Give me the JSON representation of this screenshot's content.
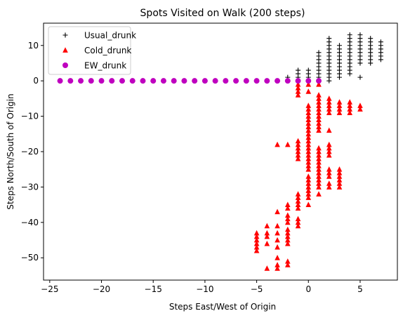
{
  "chart_data": {
    "type": "scatter",
    "title": "Spots Visited on Walk (200 steps)",
    "xlabel": "Steps East/West of Origin",
    "ylabel": "Steps North/South of Origin",
    "xlim": [
      -25.6,
      8.6
    ],
    "ylim": [
      -56.3,
      16.3
    ],
    "xticks": [
      -25,
      -20,
      -15,
      -10,
      -5,
      0,
      5
    ],
    "yticks": [
      10,
      0,
      -10,
      -20,
      -30,
      -40,
      -50
    ],
    "grid": false,
    "legend": "top-left",
    "series": [
      {
        "name": "Usual_drunk",
        "marker": "plus",
        "color": "#000000",
        "points": [
          [
            -2,
            1
          ],
          [
            -1,
            0
          ],
          [
            -1,
            1
          ],
          [
            -1,
            2
          ],
          [
            -1,
            3
          ],
          [
            0,
            0
          ],
          [
            0,
            1
          ],
          [
            0,
            2
          ],
          [
            0,
            3
          ],
          [
            1,
            0
          ],
          [
            1,
            1
          ],
          [
            1,
            2
          ],
          [
            1,
            3
          ],
          [
            1,
            4
          ],
          [
            1,
            5
          ],
          [
            1,
            6
          ],
          [
            1,
            7
          ],
          [
            1,
            8
          ],
          [
            2,
            0
          ],
          [
            2,
            1
          ],
          [
            2,
            2
          ],
          [
            2,
            3
          ],
          [
            2,
            4
          ],
          [
            2,
            5
          ],
          [
            2,
            6
          ],
          [
            2,
            7
          ],
          [
            2,
            8
          ],
          [
            2,
            9
          ],
          [
            2,
            10
          ],
          [
            2,
            11
          ],
          [
            2,
            12
          ],
          [
            3,
            1
          ],
          [
            3,
            2
          ],
          [
            3,
            3
          ],
          [
            3,
            4
          ],
          [
            3,
            5
          ],
          [
            3,
            6
          ],
          [
            3,
            7
          ],
          [
            3,
            8
          ],
          [
            3,
            9
          ],
          [
            3,
            10
          ],
          [
            4,
            2
          ],
          [
            4,
            3
          ],
          [
            4,
            4
          ],
          [
            4,
            5
          ],
          [
            4,
            6
          ],
          [
            4,
            7
          ],
          [
            4,
            8
          ],
          [
            4,
            9
          ],
          [
            4,
            10
          ],
          [
            4,
            11
          ],
          [
            4,
            12
          ],
          [
            4,
            13
          ],
          [
            5,
            1
          ],
          [
            5,
            5
          ],
          [
            5,
            6
          ],
          [
            5,
            7
          ],
          [
            5,
            8
          ],
          [
            5,
            9
          ],
          [
            5,
            10
          ],
          [
            5,
            11
          ],
          [
            5,
            12
          ],
          [
            5,
            13
          ],
          [
            6,
            5
          ],
          [
            6,
            6
          ],
          [
            6,
            7
          ],
          [
            6,
            8
          ],
          [
            6,
            9
          ],
          [
            6,
            10
          ],
          [
            6,
            11
          ],
          [
            6,
            12
          ],
          [
            7,
            6
          ],
          [
            7,
            7
          ],
          [
            7,
            8
          ],
          [
            7,
            9
          ],
          [
            7,
            10
          ],
          [
            7,
            11
          ]
        ]
      },
      {
        "name": "Cold_drunk",
        "marker": "triangle",
        "color": "#ff0000",
        "points": [
          [
            -5,
            -43
          ],
          [
            -5,
            -44
          ],
          [
            -5,
            -45
          ],
          [
            -5,
            -46
          ],
          [
            -5,
            -47
          ],
          [
            -5,
            -48
          ],
          [
            -4,
            -41
          ],
          [
            -4,
            -43
          ],
          [
            -4,
            -44
          ],
          [
            -4,
            -46
          ],
          [
            -4,
            -53
          ],
          [
            -3,
            -18
          ],
          [
            -3,
            -37
          ],
          [
            -3,
            -41
          ],
          [
            -3,
            -43
          ],
          [
            -3,
            -45
          ],
          [
            -3,
            -47
          ],
          [
            -3,
            -50
          ],
          [
            -3,
            -52
          ],
          [
            -3,
            -53
          ],
          [
            -2,
            -18
          ],
          [
            -2,
            -35
          ],
          [
            -2,
            -36
          ],
          [
            -2,
            -38
          ],
          [
            -2,
            -39
          ],
          [
            -2,
            -40
          ],
          [
            -2,
            -42
          ],
          [
            -2,
            -43
          ],
          [
            -2,
            -44
          ],
          [
            -2,
            -45
          ],
          [
            -2,
            -46
          ],
          [
            -2,
            -51
          ],
          [
            -2,
            -52
          ],
          [
            -1,
            -17
          ],
          [
            -1,
            -18
          ],
          [
            -1,
            -19
          ],
          [
            -1,
            -20
          ],
          [
            -1,
            -21
          ],
          [
            -1,
            -22
          ],
          [
            -1,
            -32
          ],
          [
            -1,
            -33
          ],
          [
            -1,
            -34
          ],
          [
            -1,
            -35
          ],
          [
            -1,
            -36
          ],
          [
            -1,
            -39
          ],
          [
            -1,
            -40
          ],
          [
            -1,
            -41
          ],
          [
            -1,
            -1
          ],
          [
            -1,
            -2
          ],
          [
            -1,
            -3
          ],
          [
            -1,
            -4
          ],
          [
            0,
            -1
          ],
          [
            0,
            -3
          ],
          [
            0,
            -7
          ],
          [
            0,
            -8
          ],
          [
            0,
            -9
          ],
          [
            0,
            -10
          ],
          [
            0,
            -11
          ],
          [
            0,
            -12
          ],
          [
            0,
            -13
          ],
          [
            0,
            -14
          ],
          [
            0,
            -15
          ],
          [
            0,
            -16
          ],
          [
            0,
            -17
          ],
          [
            0,
            -18
          ],
          [
            0,
            -19
          ],
          [
            0,
            -20
          ],
          [
            0,
            -21
          ],
          [
            0,
            -22
          ],
          [
            0,
            -23
          ],
          [
            0,
            -24
          ],
          [
            0,
            -25
          ],
          [
            0,
            -27
          ],
          [
            0,
            -28
          ],
          [
            0,
            -29
          ],
          [
            0,
            -30
          ],
          [
            0,
            -31
          ],
          [
            0,
            -32
          ],
          [
            0,
            -33
          ],
          [
            0,
            -35
          ],
          [
            1,
            -1
          ],
          [
            1,
            -4
          ],
          [
            1,
            -5
          ],
          [
            1,
            -6
          ],
          [
            1,
            -7
          ],
          [
            1,
            -8
          ],
          [
            1,
            -9
          ],
          [
            1,
            -10
          ],
          [
            1,
            -11
          ],
          [
            1,
            -12
          ],
          [
            1,
            -13
          ],
          [
            1,
            -14
          ],
          [
            1,
            -19
          ],
          [
            1,
            -20
          ],
          [
            1,
            -21
          ],
          [
            1,
            -22
          ],
          [
            1,
            -23
          ],
          [
            1,
            -24
          ],
          [
            1,
            -25
          ],
          [
            1,
            -26
          ],
          [
            1,
            -27
          ],
          [
            1,
            -28
          ],
          [
            1,
            -29
          ],
          [
            1,
            -30
          ],
          [
            1,
            -32
          ],
          [
            2,
            -5
          ],
          [
            2,
            -6
          ],
          [
            2,
            -7
          ],
          [
            2,
            -8
          ],
          [
            2,
            -9
          ],
          [
            2,
            -14
          ],
          [
            2,
            -18
          ],
          [
            2,
            -19
          ],
          [
            2,
            -20
          ],
          [
            2,
            -21
          ],
          [
            2,
            -25
          ],
          [
            2,
            -26
          ],
          [
            2,
            -27
          ],
          [
            2,
            -29
          ],
          [
            2,
            -30
          ],
          [
            3,
            -6
          ],
          [
            3,
            -7
          ],
          [
            3,
            -8
          ],
          [
            3,
            -9
          ],
          [
            3,
            -25
          ],
          [
            3,
            -26
          ],
          [
            3,
            -27
          ],
          [
            3,
            -28
          ],
          [
            3,
            -29
          ],
          [
            3,
            -30
          ],
          [
            4,
            -6
          ],
          [
            4,
            -7
          ],
          [
            4,
            -8
          ],
          [
            4,
            -9
          ],
          [
            5,
            -7
          ],
          [
            5,
            -8
          ]
        ]
      },
      {
        "name": "EW_drunk",
        "marker": "circle",
        "color": "#bf00bf",
        "points": [
          [
            -24,
            0
          ],
          [
            -23,
            0
          ],
          [
            -22,
            0
          ],
          [
            -21,
            0
          ],
          [
            -20,
            0
          ],
          [
            -19,
            0
          ],
          [
            -18,
            0
          ],
          [
            -17,
            0
          ],
          [
            -16,
            0
          ],
          [
            -15,
            0
          ],
          [
            -14,
            0
          ],
          [
            -13,
            0
          ],
          [
            -12,
            0
          ],
          [
            -11,
            0
          ],
          [
            -10,
            0
          ],
          [
            -9,
            0
          ],
          [
            -8,
            0
          ],
          [
            -7,
            0
          ],
          [
            -6,
            0
          ],
          [
            -5,
            0
          ],
          [
            -4,
            0
          ],
          [
            -3,
            0
          ],
          [
            -2,
            0
          ],
          [
            -1,
            0
          ],
          [
            0,
            0
          ],
          [
            1,
            0
          ]
        ]
      }
    ]
  }
}
